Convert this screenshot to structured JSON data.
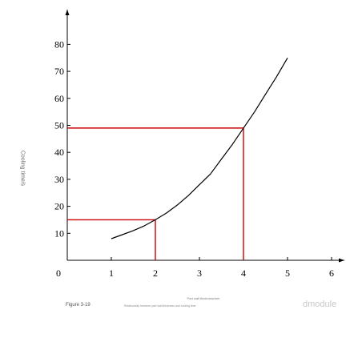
{
  "chart_data": {
    "type": "line",
    "ylabel": "Cooling time/s",
    "xlabel": "Part wall thickness/mm",
    "x_ticks": [
      "0",
      "1",
      "2",
      "3",
      "4",
      "5",
      "6"
    ],
    "y_ticks": [
      "10",
      "20",
      "30",
      "40",
      "50",
      "60",
      "70",
      "80"
    ],
    "xlim": [
      0,
      6
    ],
    "ylim": [
      0,
      80
    ],
    "series": [
      {
        "color": "#000000",
        "points": [
          [
            1.0,
            8
          ],
          [
            1.25,
            9.5
          ],
          [
            1.5,
            11
          ],
          [
            1.75,
            12.8
          ],
          [
            2.0,
            15
          ],
          [
            2.25,
            17.5
          ],
          [
            2.5,
            20.5
          ],
          [
            2.75,
            24
          ],
          [
            3.0,
            28
          ],
          [
            3.25,
            32
          ],
          [
            3.5,
            37.5
          ],
          [
            3.75,
            43
          ],
          [
            4.0,
            49
          ],
          [
            4.25,
            55
          ],
          [
            4.5,
            61.5
          ],
          [
            4.75,
            68
          ],
          [
            5.0,
            75
          ]
        ]
      }
    ],
    "reference_lines": [
      {
        "x": 2,
        "y": 15,
        "color": "#cc0000"
      },
      {
        "x": 4,
        "y": 49,
        "color": "#cc0000"
      }
    ],
    "grid": false
  },
  "caption": {
    "figure_number": "Figure 3-19",
    "text": "Relationship between part wall thickness and cooling time"
  },
  "watermark": "dmodule"
}
